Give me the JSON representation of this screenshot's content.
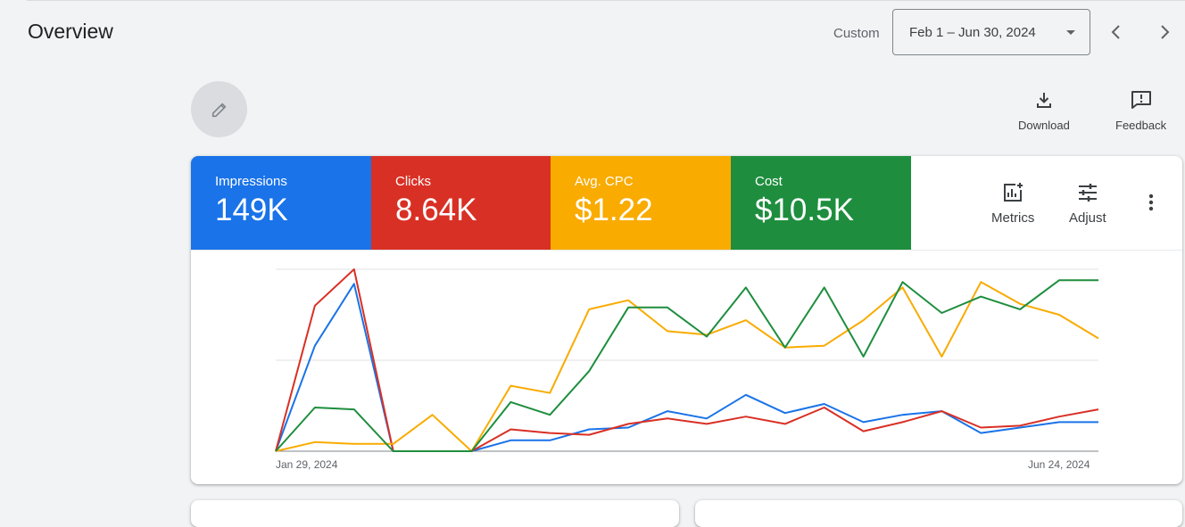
{
  "header": {
    "title": "Overview",
    "custom_label": "Custom",
    "date_range": "Feb 1 – Jun 30, 2024"
  },
  "toolbar": {
    "download_label": "Download",
    "feedback_label": "Feedback"
  },
  "metrics": [
    {
      "name": "Impressions",
      "value": "149K",
      "color": "#1a73e8"
    },
    {
      "name": "Clicks",
      "value": "8.64K",
      "color": "#d93025"
    },
    {
      "name": "Avg. CPC",
      "value": "$1.22",
      "color": "#f9ab00"
    },
    {
      "name": "Cost",
      "value": "$10.5K",
      "color": "#1e8e3e"
    }
  ],
  "card_tools": {
    "metrics_label": "Metrics",
    "adjust_label": "Adjust"
  },
  "chart_data": {
    "type": "line",
    "x_start_label": "Jan 29, 2024",
    "x_end_label": "Jun 24, 2024",
    "ylim": [
      0,
      100
    ],
    "grid": true,
    "series": [
      {
        "name": "Impressions",
        "color": "#1a73e8",
        "values": [
          0,
          58,
          92,
          0,
          0,
          0,
          6,
          6,
          12,
          13,
          22,
          18,
          31,
          21,
          26,
          16,
          20,
          22,
          10,
          13,
          16,
          16
        ]
      },
      {
        "name": "Clicks",
        "color": "#d93025",
        "values": [
          0,
          80,
          100,
          0,
          0,
          0,
          12,
          10,
          9,
          15,
          18,
          15,
          19,
          15,
          24,
          11,
          16,
          22,
          13,
          14,
          19,
          23
        ]
      },
      {
        "name": "Avg. CPC",
        "color": "#f9ab00",
        "values": [
          0,
          5,
          4,
          4,
          20,
          0,
          36,
          32,
          78,
          83,
          66,
          64,
          72,
          57,
          58,
          72,
          90,
          52,
          93,
          81,
          75,
          62
        ]
      },
      {
        "name": "Cost",
        "color": "#1e8e3e",
        "values": [
          0,
          24,
          23,
          0,
          0,
          0,
          27,
          20,
          44,
          79,
          79,
          63,
          90,
          57,
          90,
          52,
          93,
          76,
          85,
          78,
          94,
          94
        ]
      }
    ]
  }
}
